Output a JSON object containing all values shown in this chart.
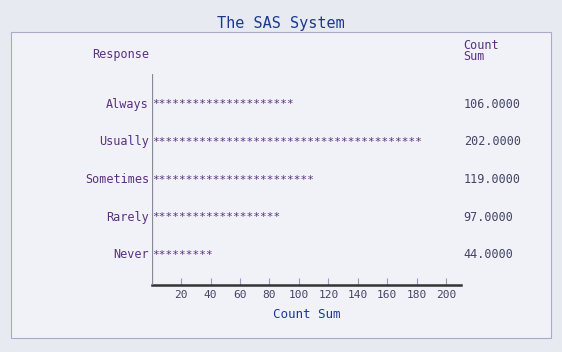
{
  "title": "The SAS System",
  "categories": [
    "Always",
    "Usually",
    "Sometimes",
    "Rarely",
    "Never"
  ],
  "values": [
    106.0,
    202.0,
    119.0,
    97.0,
    44.0
  ],
  "value_labels": [
    "106.0000",
    "202.0000",
    "119.0000",
    "97.0000",
    "44.0000"
  ],
  "xlabel": "Count Sum",
  "ylabel": "Response",
  "col_header_line1": "Count",
  "col_header_line2": "Sum",
  "xlim": [
    0,
    210
  ],
  "xticks": [
    20,
    40,
    60,
    80,
    100,
    120,
    140,
    160,
    180,
    200
  ],
  "background_color": "#e8eaf2",
  "inner_bg_color": "#f0f2f8",
  "title_color": "#1a3a8c",
  "label_color": "#5a3080",
  "tick_color": "#444466",
  "value_color": "#444466",
  "asterisk_color": "#5a3080",
  "spine_color": "#333333",
  "vline_color": "#888899",
  "tick_line_color": "#9999bb",
  "title_fontsize": 11,
  "label_fontsize": 8.5,
  "tick_fontsize": 8,
  "value_fontsize": 8.5,
  "header_fontsize": 8.5,
  "asterisk_fontsize": 8,
  "xlabel_fontsize": 9,
  "star_per_unit": 0.2
}
